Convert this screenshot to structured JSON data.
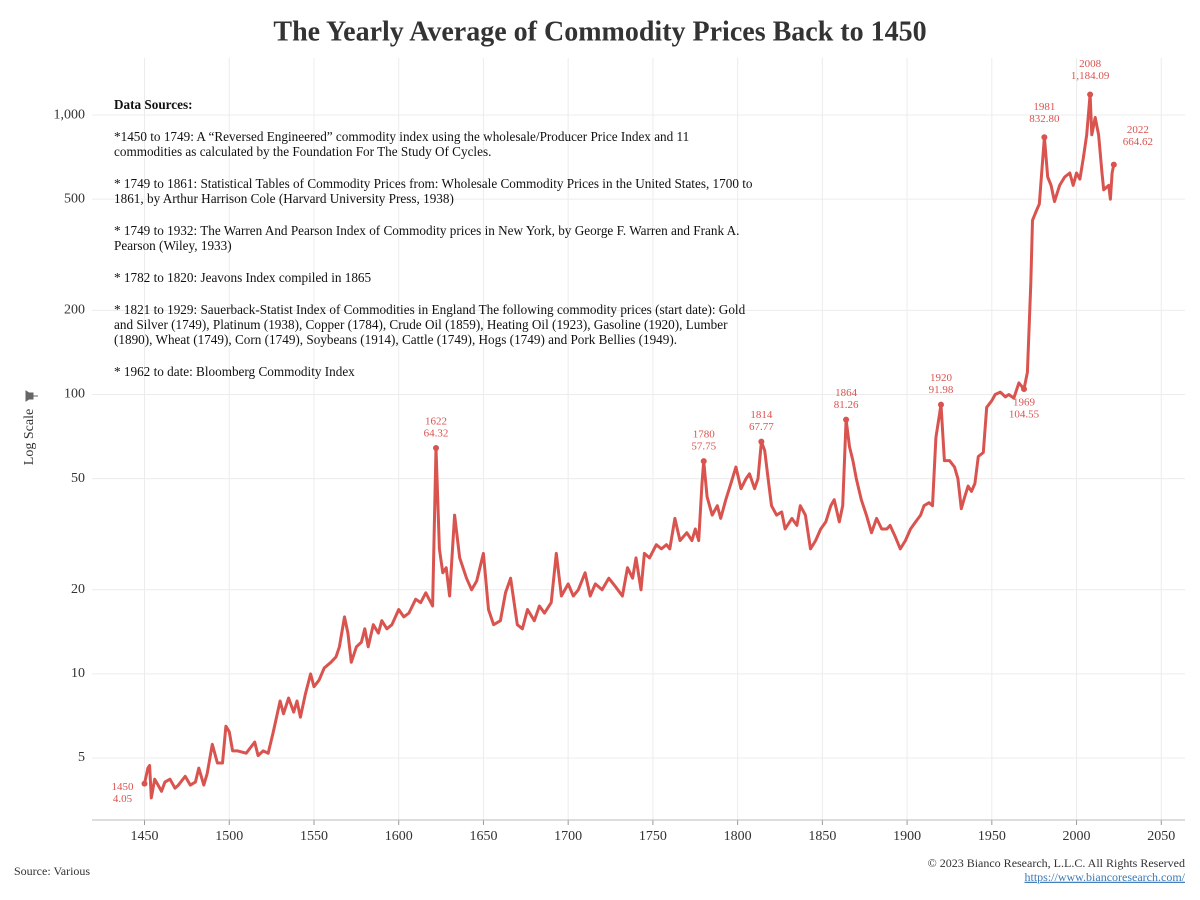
{
  "chart_data": {
    "type": "line",
    "title": "The Yearly Average of Commodity Prices Back to 1450",
    "y_label": "Log Scale",
    "log_scale": true,
    "grid": true,
    "color": "#d9534f",
    "xlim": [
      1419,
      2064
    ],
    "xticks": [
      1450,
      1500,
      1550,
      1600,
      1650,
      1700,
      1750,
      1800,
      1850,
      1900,
      1950,
      2000,
      2050
    ],
    "ylim": [
      3,
      1600
    ],
    "yticks": [
      5,
      10,
      20,
      50,
      100,
      200,
      500,
      {
        "value": 1000,
        "label": "1,000"
      }
    ],
    "x": [
      1450,
      1452,
      1453,
      1454,
      1456,
      1458,
      1460,
      1462,
      1465,
      1468,
      1470,
      1474,
      1477,
      1480,
      1482,
      1485,
      1487,
      1490,
      1493,
      1496,
      1498,
      1500,
      1502,
      1505,
      1510,
      1515,
      1517,
      1520,
      1523,
      1526,
      1530,
      1532,
      1535,
      1538,
      1540,
      1542,
      1545,
      1548,
      1550,
      1553,
      1556,
      1560,
      1563,
      1565,
      1568,
      1570,
      1572,
      1575,
      1578,
      1580,
      1582,
      1585,
      1588,
      1590,
      1593,
      1596,
      1600,
      1603,
      1606,
      1610,
      1613,
      1616,
      1620,
      1622,
      1624,
      1626,
      1628,
      1630,
      1633,
      1636,
      1640,
      1643,
      1646,
      1650,
      1653,
      1656,
      1660,
      1663,
      1666,
      1670,
      1673,
      1676,
      1680,
      1683,
      1686,
      1690,
      1693,
      1696,
      1700,
      1703,
      1706,
      1710,
      1713,
      1716,
      1720,
      1724,
      1728,
      1732,
      1735,
      1738,
      1740,
      1743,
      1745,
      1748,
      1752,
      1755,
      1758,
      1760,
      1763,
      1766,
      1770,
      1773,
      1775,
      1777,
      1779,
      1780,
      1782,
      1785,
      1788,
      1790,
      1793,
      1796,
      1799,
      1802,
      1805,
      1807,
      1810,
      1812,
      1814,
      1816,
      1818,
      1820,
      1823,
      1826,
      1828,
      1832,
      1835,
      1837,
      1840,
      1843,
      1846,
      1849,
      1852,
      1855,
      1857,
      1860,
      1862,
      1864,
      1866,
      1868,
      1870,
      1873,
      1876,
      1879,
      1882,
      1885,
      1888,
      1890,
      1893,
      1896,
      1899,
      1902,
      1905,
      1908,
      1910,
      1913,
      1915,
      1917,
      1920,
      1922,
      1925,
      1928,
      1930,
      1932,
      1934,
      1936,
      1938,
      1940,
      1942,
      1945,
      1947,
      1950,
      1952,
      1955,
      1958,
      1960,
      1963,
      1966,
      1969,
      1971,
      1973,
      1974,
      1976,
      1978,
      1981,
      1983,
      1985,
      1987,
      1990,
      1993,
      1996,
      1998,
      2000,
      2002,
      2004,
      2006,
      2008,
      2009,
      2011,
      2013,
      2015,
      2016,
      2019,
      2020,
      2021,
      2022
    ],
    "values": [
      4.05,
      4.6,
      4.7,
      3.6,
      4.2,
      4.0,
      3.8,
      4.1,
      4.2,
      3.9,
      4.0,
      4.3,
      4.0,
      4.1,
      4.6,
      4.0,
      4.4,
      5.6,
      4.8,
      4.8,
      6.5,
      6.2,
      5.3,
      5.3,
      5.2,
      5.7,
      5.1,
      5.3,
      5.2,
      6.2,
      8.0,
      7.2,
      8.2,
      7.3,
      8.0,
      7.0,
      8.5,
      10.0,
      9.0,
      9.5,
      10.5,
      11.0,
      11.5,
      12.5,
      16.0,
      14.0,
      11.0,
      12.5,
      13.0,
      14.5,
      12.5,
      15.0,
      14.0,
      15.5,
      14.5,
      15.0,
      17.0,
      16.0,
      16.5,
      18.5,
      18.0,
      19.5,
      17.5,
      64.32,
      28.0,
      23.0,
      24.0,
      19.0,
      37.0,
      26.0,
      22.0,
      20.0,
      21.5,
      27.0,
      17.0,
      15.0,
      15.5,
      19.5,
      22.0,
      15.0,
      14.5,
      17.0,
      15.5,
      17.5,
      16.5,
      18.0,
      27.0,
      19.0,
      21.0,
      19.0,
      20.0,
      23.0,
      19.0,
      21.0,
      20.0,
      22.0,
      20.5,
      19.0,
      24.0,
      22.0,
      26.0,
      20.0,
      27.0,
      26.0,
      29.0,
      28.0,
      29.0,
      28.0,
      36.0,
      30.0,
      32.0,
      30.0,
      33.0,
      30.0,
      48.0,
      57.75,
      43.0,
      37.0,
      40.0,
      36.0,
      42.0,
      48.0,
      55.0,
      46.0,
      50.0,
      52.0,
      46.0,
      50.0,
      67.77,
      63.0,
      50.0,
      40.0,
      37.0,
      38.0,
      33.0,
      36.0,
      34.0,
      40.0,
      37.0,
      28.0,
      30.0,
      33.0,
      35.0,
      40.0,
      42.0,
      35.0,
      40.0,
      81.26,
      65.0,
      58.0,
      50.0,
      42.0,
      37.0,
      32.0,
      36.0,
      33.0,
      33.0,
      34.0,
      31.0,
      28.0,
      30.0,
      33.0,
      35.0,
      37.0,
      40.0,
      41.0,
      40.0,
      70.0,
      91.98,
      58.0,
      58.0,
      55.0,
      50.0,
      39.0,
      43.0,
      47.0,
      45.0,
      48.0,
      60.0,
      62.0,
      90.0,
      95.0,
      100.0,
      102.0,
      98.0,
      100.0,
      97.0,
      110.0,
      104.55,
      120.0,
      250.0,
      420.0,
      450.0,
      480.0,
      832.8,
      600.0,
      560.0,
      490.0,
      560.0,
      600.0,
      620.0,
      560.0,
      620.0,
      590.0,
      700.0,
      850.0,
      1184.09,
      850.0,
      980.0,
      850.0,
      620.0,
      540.0,
      560.0,
      500.0,
      620.0,
      664.62
    ],
    "annotations": [
      {
        "x": 1450,
        "value": 4.05
      },
      {
        "x": 1622,
        "value": 64.32
      },
      {
        "x": 1780,
        "value": 57.75
      },
      {
        "x": 1814,
        "value": 67.77
      },
      {
        "x": 1864,
        "value": 81.26
      },
      {
        "x": 1920,
        "value": 91.98
      },
      {
        "x": 1969,
        "value": 104.55
      },
      {
        "x": 1981,
        "value": 832.8,
        "label": "832.80"
      },
      {
        "x": 2008,
        "value": 1184.09,
        "label": "1,184.09"
      },
      {
        "x": 2022,
        "value": 664.62
      }
    ],
    "notes": {
      "heading": "Data Sources:",
      "items": [
        "*1450 to 1749: A “Reversed Engineered” commodity index using the wholesale/Producer Price Index and 11 commodities as calculated by the Foundation For The Study Of Cycles.",
        "* 1749 to 1861: Statistical Tables of Commodity Prices from: Wholesale Commodity Prices in the United States, 1700 to 1861, by Arthur Harrison Cole (Harvard University Press, 1938)",
        "* 1749 to 1932: The Warren And Pearson Index of Commodity prices in New York, by George F. Warren and Frank A. Pearson (Wiley, 1933)",
        "* 1782 to 1820: Jeavons Index compiled in 1865",
        "* 1821 to 1929: Sauerback-Statist Index of Commodities in England The following commodity prices (start date): Gold and Silver (1749), Platinum (1938), Copper (1784), Crude Oil (1859), Heating Oil (1923), Gasoline (1920), Lumber (1890), Wheat (1749), Corn (1749), Soybeans (1914), Cattle (1749), Hogs (1749) and Pork Bellies (1949).",
        "* 1962 to date: Bloomberg Commodity Index"
      ]
    },
    "source": "Source: Various",
    "copyright": "© 2023 Bianco Research, L.L.C. All Rights Reserved",
    "url": "https://www.biancoresearch.com/"
  }
}
